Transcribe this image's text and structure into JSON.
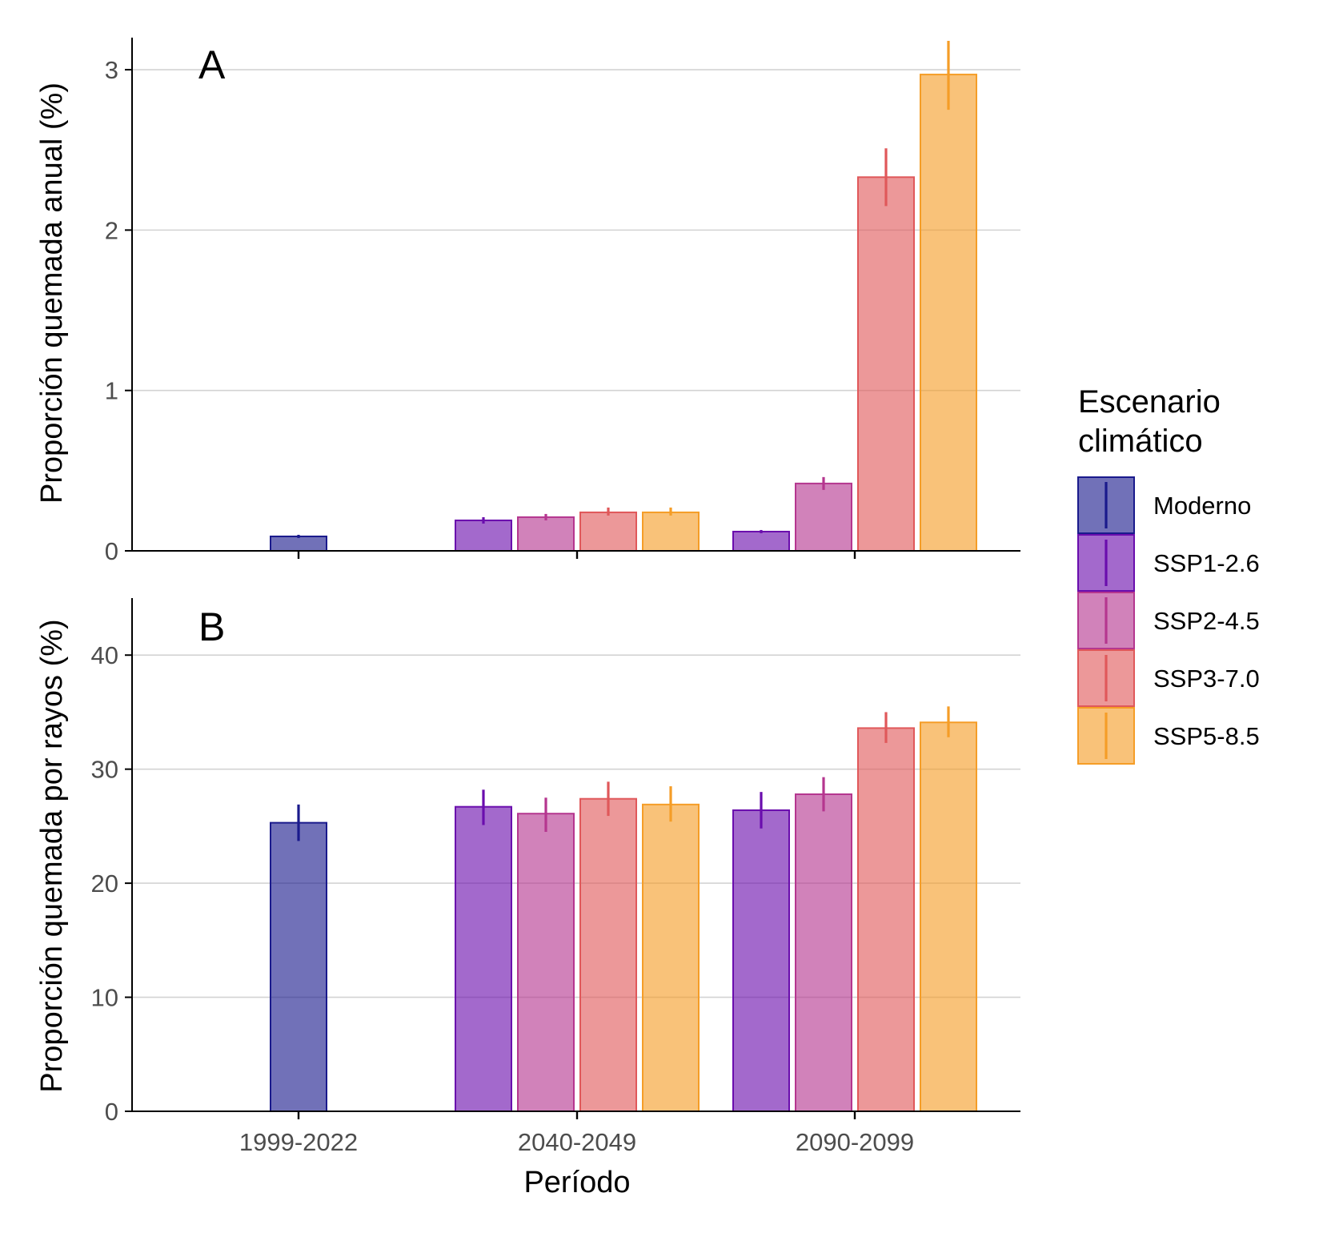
{
  "chart_data": [
    {
      "type": "bar",
      "panel_label": "A",
      "title": "",
      "xlabel": "",
      "ylabel": "Proporción quemada anual (%)",
      "ylim": [
        0,
        3.2
      ],
      "yticks": [
        0,
        1,
        2,
        3
      ],
      "grid": "horizontal",
      "categories": [
        "1999-2022",
        "2040-2049",
        "2090-2099"
      ],
      "series": [
        {
          "name": "Moderno",
          "color": "#1a1a8c",
          "values": [
            0.09,
            null,
            null
          ],
          "errors": [
            [
              0.08,
              0.1
            ],
            null,
            null
          ]
        },
        {
          "name": "SSP1-2.6",
          "color": "#6a0dad",
          "values": [
            null,
            0.19,
            0.12
          ],
          "errors": [
            null,
            [
              0.17,
              0.21
            ],
            [
              0.11,
              0.13
            ]
          ]
        },
        {
          "name": "SSP2-4.5",
          "color": "#b5368f",
          "values": [
            null,
            0.21,
            0.42
          ],
          "errors": [
            null,
            [
              0.19,
              0.23
            ],
            [
              0.38,
              0.46
            ]
          ]
        },
        {
          "name": "SSP3-7.0",
          "color": "#e0585a",
          "values": [
            null,
            0.24,
            2.33
          ],
          "errors": [
            null,
            [
              0.22,
              0.27
            ],
            [
              2.15,
              2.51
            ]
          ]
        },
        {
          "name": "SSP5-8.5",
          "color": "#f59d27",
          "values": [
            null,
            0.24,
            2.97
          ],
          "errors": [
            null,
            [
              0.22,
              0.27
            ],
            [
              2.75,
              3.18
            ]
          ]
        }
      ]
    },
    {
      "type": "bar",
      "panel_label": "B",
      "title": "",
      "xlabel": "Período",
      "ylabel": "Proporción quemada por rayos (%)",
      "ylim": [
        0,
        45
      ],
      "yticks": [
        0,
        10,
        20,
        30,
        40
      ],
      "grid": "horizontal",
      "categories": [
        "1999-2022",
        "2040-2049",
        "2090-2099"
      ],
      "series": [
        {
          "name": "Moderno",
          "color": "#1a1a8c",
          "values": [
            25.3,
            null,
            null
          ],
          "errors": [
            [
              23.7,
              26.9
            ],
            null,
            null
          ]
        },
        {
          "name": "SSP1-2.6",
          "color": "#6a0dad",
          "values": [
            null,
            26.7,
            26.4
          ],
          "errors": [
            null,
            [
              25.1,
              28.2
            ],
            [
              24.8,
              28.0
            ]
          ]
        },
        {
          "name": "SSP2-4.5",
          "color": "#b5368f",
          "values": [
            null,
            26.1,
            27.8
          ],
          "errors": [
            null,
            [
              24.5,
              27.5
            ],
            [
              26.3,
              29.3
            ]
          ]
        },
        {
          "name": "SSP3-7.0",
          "color": "#e0585a",
          "values": [
            null,
            27.4,
            33.6
          ],
          "errors": [
            null,
            [
              25.9,
              28.9
            ],
            [
              32.3,
              35.0
            ]
          ]
        },
        {
          "name": "SSP5-8.5",
          "color": "#f59d27",
          "values": [
            null,
            26.9,
            34.1
          ],
          "errors": [
            null,
            [
              25.4,
              28.5
            ],
            [
              32.8,
              35.5
            ]
          ]
        }
      ]
    }
  ],
  "legend": {
    "title_line1": "Escenario",
    "title_line2": "climático",
    "position": "right",
    "items": [
      {
        "label": "Moderno",
        "color": "#1a1a8c"
      },
      {
        "label": "SSP1-2.6",
        "color": "#6a0dad"
      },
      {
        "label": "SSP2-4.5",
        "color": "#b5368f"
      },
      {
        "label": "SSP3-7.0",
        "color": "#e0585a"
      },
      {
        "label": "SSP5-8.5",
        "color": "#f59d27"
      }
    ]
  }
}
